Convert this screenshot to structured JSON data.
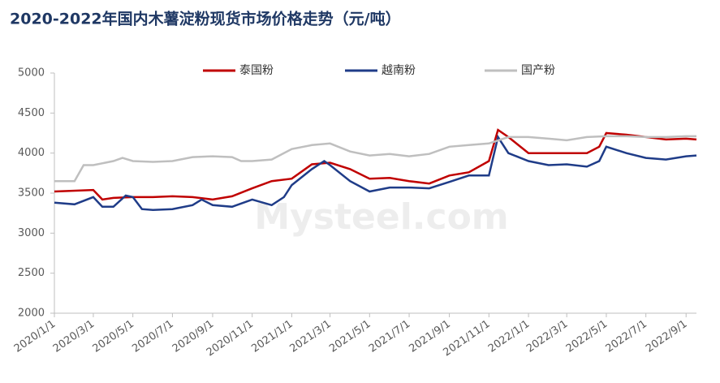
{
  "chart_data": {
    "type": "line",
    "title": "2020-2022年国内木薯淀粉现货市场价格走势（元/吨）",
    "watermark": "Mysteel.com",
    "xlim": [
      "2020/1/1",
      "2022/9/17"
    ],
    "xticks": [
      "2020/1/1",
      "2020/3/1",
      "2020/5/1",
      "2020/7/1",
      "2020/9/1",
      "2020/11/1",
      "2021/1/1",
      "2021/3/1",
      "2021/5/1",
      "2021/7/1",
      "2021/9/1",
      "2021/11/1",
      "2022/1/1",
      "2022/3/1",
      "2022/5/1",
      "2022/7/1",
      "2022/9/1"
    ],
    "ylim": [
      2000,
      5000
    ],
    "yticks": [
      2000,
      2500,
      3000,
      3500,
      4000,
      4500,
      5000
    ],
    "legend_position": "top",
    "series": [
      {
        "name": "泰国粉",
        "color": "#c00000",
        "x": [
          "2020/1/1",
          "2020/3/1",
          "2020/3/15",
          "2020/4/1",
          "2020/5/1",
          "2020/6/1",
          "2020/7/1",
          "2020/8/1",
          "2020/9/1",
          "2020/10/1",
          "2020/11/1",
          "2020/12/1",
          "2021/1/1",
          "2021/2/1",
          "2021/3/1",
          "2021/4/1",
          "2021/5/1",
          "2021/6/1",
          "2021/7/1",
          "2021/8/1",
          "2021/9/1",
          "2021/10/1",
          "2021/11/1",
          "2021/11/15",
          "2021/12/1",
          "2022/1/1",
          "2022/2/1",
          "2022/3/1",
          "2022/4/1",
          "2022/4/20",
          "2022/5/1",
          "2022/6/1",
          "2022/7/1",
          "2022/8/1",
          "2022/9/1",
          "2022/9/17"
        ],
        "values": [
          3520,
          3540,
          3420,
          3440,
          3450,
          3450,
          3460,
          3450,
          3420,
          3460,
          3560,
          3650,
          3680,
          3860,
          3880,
          3800,
          3680,
          3690,
          3650,
          3620,
          3720,
          3760,
          3900,
          4290,
          4200,
          4000,
          4000,
          4000,
          4000,
          4080,
          4250,
          4230,
          4200,
          4170,
          4180,
          4170
        ]
      },
      {
        "name": "越南粉",
        "color": "#1f3c88",
        "x": [
          "2020/1/1",
          "2020/2/1",
          "2020/3/1",
          "2020/3/15",
          "2020/4/1",
          "2020/4/20",
          "2020/5/1",
          "2020/5/15",
          "2020/6/1",
          "2020/7/1",
          "2020/8/1",
          "2020/8/15",
          "2020/9/1",
          "2020/10/1",
          "2020/11/1",
          "2020/12/1",
          "2020/12/20",
          "2021/1/1",
          "2021/2/1",
          "2021/2/20",
          "2021/3/1",
          "2021/4/1",
          "2021/5/1",
          "2021/6/1",
          "2021/7/1",
          "2021/8/1",
          "2021/9/1",
          "2021/10/1",
          "2021/11/1",
          "2021/11/15",
          "2021/12/1",
          "2022/1/1",
          "2022/2/1",
          "2022/3/1",
          "2022/4/1",
          "2022/4/20",
          "2022/5/1",
          "2022/6/1",
          "2022/7/1",
          "2022/8/1",
          "2022/9/1",
          "2022/9/17"
        ],
        "values": [
          3380,
          3360,
          3450,
          3330,
          3330,
          3470,
          3450,
          3300,
          3290,
          3300,
          3350,
          3420,
          3350,
          3330,
          3420,
          3350,
          3450,
          3600,
          3800,
          3900,
          3850,
          3650,
          3520,
          3570,
          3570,
          3560,
          3640,
          3720,
          3720,
          4200,
          4000,
          3900,
          3850,
          3860,
          3830,
          3900,
          4080,
          4000,
          3940,
          3920,
          3960,
          3970
        ]
      },
      {
        "name": "国产粉",
        "color": "#bfbfbf",
        "x": [
          "2020/1/1",
          "2020/2/1",
          "2020/2/15",
          "2020/3/1",
          "2020/4/1",
          "2020/4/15",
          "2020/5/1",
          "2020/6/1",
          "2020/7/1",
          "2020/8/1",
          "2020/9/1",
          "2020/10/1",
          "2020/10/15",
          "2020/11/1",
          "2020/12/1",
          "2021/1/1",
          "2021/2/1",
          "2021/3/1",
          "2021/4/1",
          "2021/5/1",
          "2021/6/1",
          "2021/7/1",
          "2021/8/1",
          "2021/9/1",
          "2021/10/1",
          "2021/11/1",
          "2021/12/1",
          "2022/1/1",
          "2022/2/1",
          "2022/3/1",
          "2022/4/1",
          "2022/5/1",
          "2022/6/1",
          "2022/7/1",
          "2022/8/1",
          "2022/9/1",
          "2022/9/17"
        ],
        "values": [
          3650,
          3650,
          3850,
          3850,
          3900,
          3940,
          3900,
          3890,
          3900,
          3950,
          3960,
          3950,
          3900,
          3900,
          3920,
          4050,
          4100,
          4120,
          4020,
          3970,
          3990,
          3960,
          3990,
          4080,
          4100,
          4120,
          4200,
          4200,
          4180,
          4160,
          4200,
          4210,
          4210,
          4200,
          4200,
          4210,
          4210
        ]
      }
    ]
  }
}
